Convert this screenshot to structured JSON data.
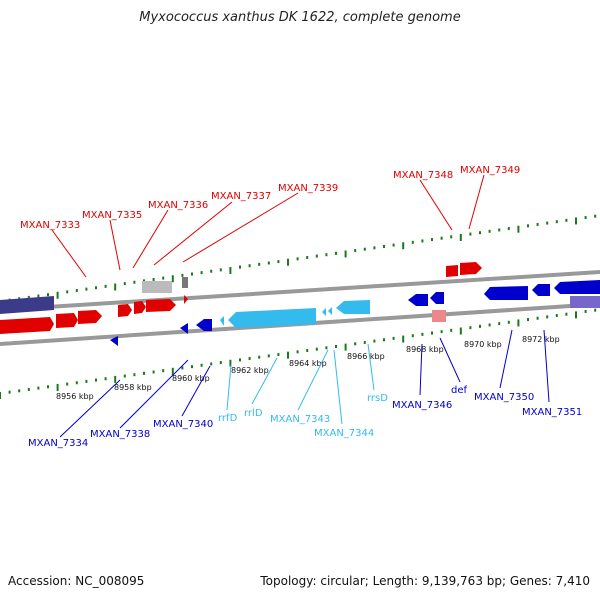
{
  "title": "Myxococcus xanthus DK 1622, complete genome",
  "footer": {
    "accession": "Accession: NC_008095",
    "summary": "Topology: circular; Length: 9,139,763 bp; Genes: 7,410"
  },
  "colors": {
    "forward_gene": "#e00000",
    "reverse_gene": "#0000cc",
    "rna": "#33bbee",
    "backbone": "#888888",
    "tick": "#1a7a1a",
    "tick_label": "#111111",
    "other_gene": "#3b3b8a",
    "pseudo_gene": "#bbbbbb"
  },
  "scale_labels": [
    "8956 kbp",
    "8958 kbp",
    "8960 kbp",
    "8962 kbp",
    "8964 kbp",
    "8966 kbp",
    "8968 kbp",
    "8970 kbp",
    "8972 kbp"
  ],
  "top_labels": [
    "MXAN_7333",
    "MXAN_7335",
    "MXAN_7336",
    "MXAN_7337",
    "MXAN_7339",
    "MXAN_7348",
    "MXAN_7349"
  ],
  "bottom_labels": [
    "MXAN_7334",
    "MXAN_7338",
    "MXAN_7340",
    "rrfD",
    "rrlD",
    "MXAN_7343",
    "MXAN_7344",
    "rrsD",
    "MXAN_7346",
    "def",
    "MXAN_7350",
    "MXAN_7351"
  ]
}
